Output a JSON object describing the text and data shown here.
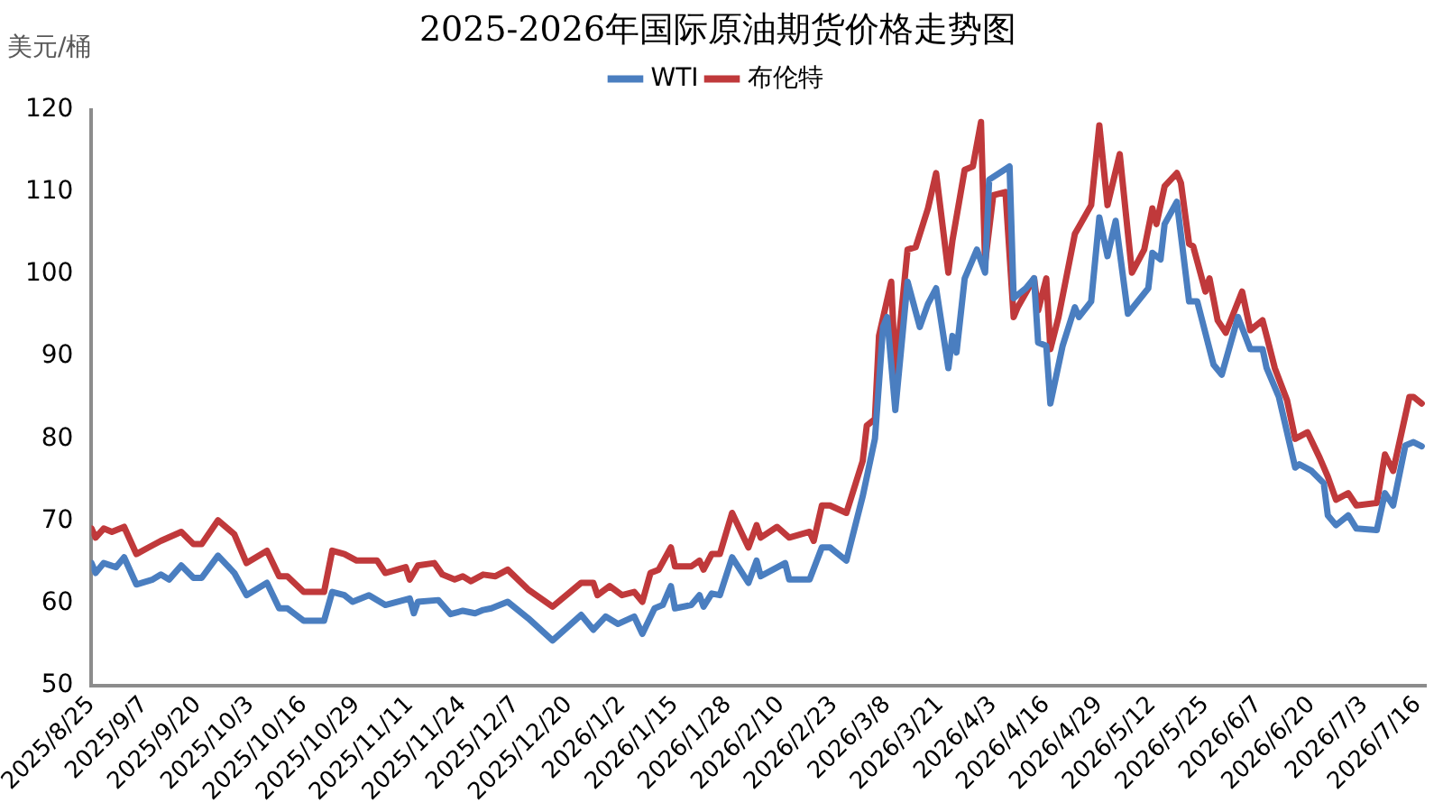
{
  "chart_data": {
    "type": "line",
    "title": "2025-2026年国际原油期货价格走势图",
    "ylabel": "美元/桶",
    "xlim": [
      "2025-08-25",
      "2026-07-18"
    ],
    "xticks": [
      {
        "value": "2025-08-25",
        "label": "2025/8/25"
      },
      {
        "value": "2025-09-07",
        "label": "2025/9/7"
      },
      {
        "value": "2025-09-20",
        "label": "2025/9/20"
      },
      {
        "value": "2025-10-03",
        "label": "2025/10/3"
      },
      {
        "value": "2025-10-16",
        "label": "2025/10/16"
      },
      {
        "value": "2025-10-29",
        "label": "2025/10/29"
      },
      {
        "value": "2025-11-11",
        "label": "2025/11/11"
      },
      {
        "value": "2025-11-24",
        "label": "2025/11/24"
      },
      {
        "value": "2025-12-07",
        "label": "2025/12/7"
      },
      {
        "value": "2025-12-20",
        "label": "2025/12/20"
      },
      {
        "value": "2026-01-02",
        "label": "2026/1/2"
      },
      {
        "value": "2026-01-15",
        "label": "2026/1/15"
      },
      {
        "value": "2026-01-28",
        "label": "2026/1/28"
      },
      {
        "value": "2026-02-10",
        "label": "2026/2/10"
      },
      {
        "value": "2026-02-23",
        "label": "2026/2/23"
      },
      {
        "value": "2026-03-08",
        "label": "2026/3/8"
      },
      {
        "value": "2026-03-21",
        "label": "2026/3/21"
      },
      {
        "value": "2026-04-03",
        "label": "2026/4/3"
      },
      {
        "value": "2026-04-16",
        "label": "2026/4/16"
      },
      {
        "value": "2026-04-29",
        "label": "2026/4/29"
      },
      {
        "value": "2026-05-12",
        "label": "2026/5/12"
      },
      {
        "value": "2026-05-25",
        "label": "2026/5/25"
      },
      {
        "value": "2026-06-07",
        "label": "2026/6/7"
      },
      {
        "value": "2026-06-20",
        "label": "2026/6/20"
      },
      {
        "value": "2026-07-03",
        "label": "2026/7/3"
      },
      {
        "value": "2026-07-16",
        "label": "2026/7/16"
      }
    ],
    "ylim": [
      50,
      120
    ],
    "yticks": [
      50,
      60,
      70,
      80,
      90,
      100,
      110,
      120
    ],
    "grid": false,
    "legend": "top",
    "marker": "none",
    "line_style": "solid",
    "series": [
      {
        "name": "WTI",
        "color": "#4a7ec0",
        "x": [
          "2025-08-25",
          "2025-08-26",
          "2025-08-28",
          "2025-08-31",
          "2025-09-02",
          "2025-09-05",
          "2025-09-09",
          "2025-09-11",
          "2025-09-13",
          "2025-09-16",
          "2025-09-19",
          "2025-09-21",
          "2025-09-25",
          "2025-09-29",
          "2025-10-02",
          "2025-10-07",
          "2025-10-10",
          "2025-10-12",
          "2025-10-16",
          "2025-10-21",
          "2025-10-23",
          "2025-10-26",
          "2025-10-28",
          "2025-11-01",
          "2025-11-05",
          "2025-11-11",
          "2025-11-12",
          "2025-11-13",
          "2025-11-18",
          "2025-11-21",
          "2025-11-24",
          "2025-11-27",
          "2025-11-29",
          "2025-12-01",
          "2025-12-05",
          "2025-12-10",
          "2025-12-16",
          "2025-12-23",
          "2025-12-26",
          "2025-12-29",
          "2026-01-01",
          "2026-01-05",
          "2026-01-07",
          "2026-01-10",
          "2026-01-12",
          "2026-01-14",
          "2026-01-15",
          "2026-01-19",
          "2026-01-21",
          "2026-01-22",
          "2026-01-24",
          "2026-01-26",
          "2026-01-29",
          "2026-02-02",
          "2026-02-04",
          "2026-02-05",
          "2026-02-11",
          "2026-02-12",
          "2026-02-17",
          "2026-02-20",
          "2026-02-22",
          "2026-02-26",
          "2026-03-02",
          "2026-03-05",
          "2026-03-07",
          "2026-03-08",
          "2026-03-10",
          "2026-03-13",
          "2026-03-16",
          "2026-03-18",
          "2026-03-20",
          "2026-03-23",
          "2026-03-24",
          "2026-03-25",
          "2026-03-27",
          "2026-03-30",
          "2026-04-01",
          "2026-04-02",
          "2026-04-07",
          "2026-04-08",
          "2026-04-11",
          "2026-04-13",
          "2026-04-14",
          "2026-04-16",
          "2026-04-17",
          "2026-04-20",
          "2026-04-23",
          "2026-04-24",
          "2026-04-27",
          "2026-04-29",
          "2026-05-01",
          "2026-05-03",
          "2026-05-06",
          "2026-05-11",
          "2026-05-12",
          "2026-05-14",
          "2026-05-15",
          "2026-05-18",
          "2026-05-21",
          "2026-05-23",
          "2026-05-27",
          "2026-05-29",
          "2026-06-02",
          "2026-06-05",
          "2026-06-08",
          "2026-06-09",
          "2026-06-12",
          "2026-06-16",
          "2026-06-17",
          "2026-06-20",
          "2026-06-23",
          "2026-06-24",
          "2026-06-26",
          "2026-06-29",
          "2026-07-01",
          "2026-07-06",
          "2026-07-08",
          "2026-07-10",
          "2026-07-13",
          "2026-07-15",
          "2026-07-17"
        ],
        "values": [
          64.9,
          63.7,
          64.9,
          64.4,
          65.6,
          62.3,
          62.9,
          63.5,
          62.9,
          64.6,
          63.1,
          63.1,
          65.8,
          63.7,
          61.0,
          62.5,
          59.4,
          59.4,
          57.9,
          57.9,
          61.4,
          61.0,
          60.2,
          61.0,
          59.8,
          60.6,
          58.8,
          60.2,
          60.4,
          58.7,
          59.1,
          58.8,
          59.2,
          59.4,
          60.2,
          58.2,
          55.5,
          58.6,
          56.8,
          58.4,
          57.5,
          58.4,
          56.3,
          59.4,
          59.8,
          62.1,
          59.4,
          59.8,
          61.0,
          59.6,
          61.2,
          61.0,
          65.6,
          62.5,
          65.2,
          63.3,
          64.9,
          62.9,
          62.9,
          66.8,
          66.8,
          65.2,
          73.0,
          80.0,
          93.6,
          94.8,
          83.5,
          99.1,
          93.6,
          96.4,
          98.3,
          88.6,
          92.5,
          90.5,
          99.5,
          103.0,
          100.2,
          111.5,
          113.1,
          97.1,
          98.3,
          99.5,
          91.7,
          91.3,
          84.3,
          91.3,
          96.0,
          94.8,
          96.7,
          106.9,
          102.2,
          106.5,
          95.2,
          98.3,
          102.6,
          101.8,
          106.1,
          108.8,
          96.7,
          96.7,
          89.0,
          87.8,
          94.8,
          90.9,
          90.9,
          88.6,
          85.1,
          76.5,
          76.9,
          76.1,
          74.6,
          70.7,
          69.5,
          70.7,
          69.1,
          68.9,
          73.4,
          71.9,
          79.2,
          79.6,
          79.1
        ]
      },
      {
        "name": "布伦特",
        "color": "#c0393b",
        "x": [
          "2025-08-25",
          "2025-08-26",
          "2025-08-28",
          "2025-08-30",
          "2025-09-02",
          "2025-09-05",
          "2025-09-08",
          "2025-09-11",
          "2025-09-16",
          "2025-09-19",
          "2025-09-21",
          "2025-09-25",
          "2025-09-29",
          "2025-10-02",
          "2025-10-07",
          "2025-10-10",
          "2025-10-12",
          "2025-10-16",
          "2025-10-21",
          "2025-10-23",
          "2025-10-26",
          "2025-10-29",
          "2025-11-03",
          "2025-11-05",
          "2025-11-10",
          "2025-11-11",
          "2025-11-13",
          "2025-11-17",
          "2025-11-19",
          "2025-11-22",
          "2025-11-24",
          "2025-11-26",
          "2025-11-29",
          "2025-12-02",
          "2025-12-05",
          "2025-12-10",
          "2025-12-16",
          "2025-12-23",
          "2025-12-26",
          "2025-12-27",
          "2025-12-30",
          "2026-01-02",
          "2026-01-05",
          "2026-01-07",
          "2026-01-09",
          "2026-01-11",
          "2026-01-14",
          "2026-01-15",
          "2026-01-19",
          "2026-01-21",
          "2026-01-22",
          "2026-01-24",
          "2026-01-26",
          "2026-01-29",
          "2026-02-02",
          "2026-02-04",
          "2026-02-05",
          "2026-02-09",
          "2026-02-12",
          "2026-02-17",
          "2026-02-18",
          "2026-02-20",
          "2026-02-22",
          "2026-02-26",
          "2026-03-02",
          "2026-03-03",
          "2026-03-05",
          "2026-03-06",
          "2026-03-09",
          "2026-03-10",
          "2026-03-13",
          "2026-03-15",
          "2026-03-18",
          "2026-03-20",
          "2026-03-23",
          "2026-03-24",
          "2026-03-27",
          "2026-03-29",
          "2026-03-31",
          "2026-04-01",
          "2026-04-03",
          "2026-04-06",
          "2026-04-08",
          "2026-04-09",
          "2026-04-13",
          "2026-04-14",
          "2026-04-16",
          "2026-04-17",
          "2026-04-19",
          "2026-04-23",
          "2026-04-27",
          "2026-04-29",
          "2026-05-01",
          "2026-05-04",
          "2026-05-07",
          "2026-05-10",
          "2026-05-12",
          "2026-05-13",
          "2026-05-15",
          "2026-05-18",
          "2026-05-19",
          "2026-05-21",
          "2026-05-22",
          "2026-05-25",
          "2026-05-26",
          "2026-05-28",
          "2026-05-30",
          "2026-06-03",
          "2026-06-05",
          "2026-06-08",
          "2026-06-09",
          "2026-06-11",
          "2026-06-14",
          "2026-06-16",
          "2026-06-19",
          "2026-06-22",
          "2026-06-24",
          "2026-06-26",
          "2026-06-29",
          "2026-07-01",
          "2026-07-06",
          "2026-07-08",
          "2026-07-10",
          "2026-07-14",
          "2026-07-15",
          "2026-07-17"
        ],
        "values": [
          69.1,
          68.0,
          69.1,
          68.7,
          69.3,
          66.0,
          66.8,
          67.6,
          68.7,
          67.2,
          67.2,
          70.1,
          68.4,
          64.9,
          66.4,
          63.3,
          63.3,
          61.4,
          61.4,
          66.4,
          66.0,
          65.2,
          65.2,
          63.7,
          64.4,
          62.9,
          64.6,
          64.9,
          63.5,
          62.9,
          63.3,
          62.7,
          63.5,
          63.3,
          64.1,
          61.7,
          59.6,
          62.5,
          62.5,
          61.0,
          62.1,
          61.0,
          61.4,
          60.2,
          63.7,
          64.1,
          66.8,
          64.5,
          64.5,
          65.2,
          64.1,
          66.0,
          66.0,
          71.0,
          66.8,
          69.5,
          68.0,
          69.3,
          68.0,
          68.7,
          67.6,
          71.9,
          71.9,
          71.0,
          77.3,
          81.6,
          82.4,
          92.5,
          99.1,
          87.8,
          103.0,
          103.3,
          108.0,
          112.3,
          100.2,
          104.1,
          112.7,
          113.1,
          118.5,
          101.4,
          109.6,
          110.0,
          94.8,
          96.0,
          99.5,
          95.6,
          99.5,
          90.9,
          94.8,
          104.9,
          108.4,
          118.1,
          108.4,
          114.6,
          100.2,
          103.0,
          108.0,
          106.1,
          110.7,
          112.3,
          111.1,
          103.7,
          103.4,
          97.9,
          99.5,
          94.4,
          92.9,
          97.9,
          93.2,
          94.4,
          92.5,
          88.6,
          84.7,
          80.0,
          80.8,
          77.7,
          75.4,
          72.6,
          73.4,
          71.9,
          72.2,
          78.1,
          76.1,
          85.1,
          85.1,
          84.3
        ]
      }
    ]
  }
}
